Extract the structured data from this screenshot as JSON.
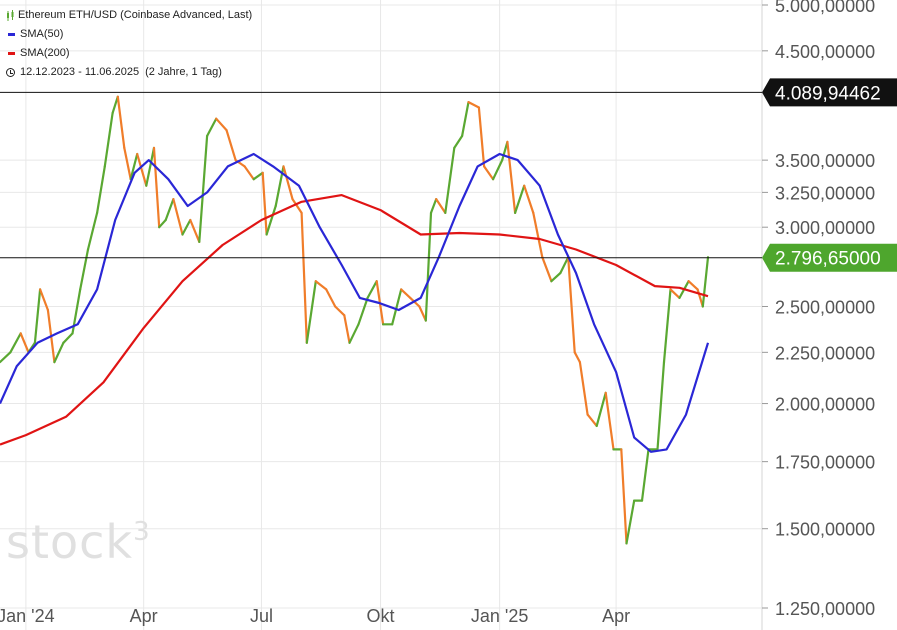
{
  "legend": {
    "instrument": "Ethereum ETH/USD (Coinbase Advanced, Last)",
    "sma50_label": "SMA(50)",
    "sma200_label": "SMA(200)",
    "period": "12.12.2023 - 11.06.2025",
    "period_detail": "(2 Jahre, 1 Tag)",
    "instrument_icon": "candle-icon",
    "period_icon": "clock-icon"
  },
  "watermark": {
    "text": "stock",
    "superscript": "3"
  },
  "colors": {
    "price_up": "#5aa832",
    "price_down": "#f07d2a",
    "sma50": "#2a27d6",
    "sma200": "#e01414",
    "grid": "#e8e8e8",
    "axis_text": "#555555",
    "label_green": "#4ea62d"
  },
  "chart_data": {
    "type": "line",
    "title": "Ethereum ETH/USD (Coinbase Advanced, Last)",
    "scale": "log",
    "xlim": [
      "2023-12-12",
      "2025-06-11"
    ],
    "ylim": [
      1250,
      5000
    ],
    "x_ticks": [
      {
        "date": "2024-01-01",
        "label": "Jan '24"
      },
      {
        "date": "2024-04-01",
        "label": "Apr"
      },
      {
        "date": "2024-07-01",
        "label": "Jul"
      },
      {
        "date": "2024-10-01",
        "label": "Okt"
      },
      {
        "date": "2025-01-01",
        "label": "Jan '25"
      },
      {
        "date": "2025-04-01",
        "label": "Apr"
      }
    ],
    "y_ticks": [
      {
        "value": 5000,
        "label": "5.000,00000"
      },
      {
        "value": 4500,
        "label": "4.500,00000"
      },
      {
        "value": 3500,
        "label": "3.500,00000"
      },
      {
        "value": 3250,
        "label": "3.250,00000"
      },
      {
        "value": 3000,
        "label": "3.000,00000"
      },
      {
        "value": 2500,
        "label": "2.500,00000"
      },
      {
        "value": 2250,
        "label": "2.250,00000"
      },
      {
        "value": 2000,
        "label": "2.000,00000"
      },
      {
        "value": 1750,
        "label": "1.750,00000"
      },
      {
        "value": 1500,
        "label": "1.500,00000"
      },
      {
        "value": 1250,
        "label": "1.250,00000"
      }
    ],
    "horizontal_lines": [
      {
        "value": 4089.94462,
        "label": "4.089,94462",
        "style": "black"
      },
      {
        "value": 2796.65,
        "label": "2.796,65000",
        "style": "green"
      }
    ],
    "series": [
      {
        "name": "Ethereum ETH/USD (Coinbase Advanced, Last)",
        "kind": "price",
        "points": [
          [
            "2023-12-12",
            2200
          ],
          [
            "2023-12-20",
            2250
          ],
          [
            "2023-12-28",
            2350
          ],
          [
            "2024-01-03",
            2250
          ],
          [
            "2024-01-08",
            2300
          ],
          [
            "2024-01-12",
            2600
          ],
          [
            "2024-01-18",
            2480
          ],
          [
            "2024-01-23",
            2200
          ],
          [
            "2024-01-30",
            2300
          ],
          [
            "2024-02-06",
            2350
          ],
          [
            "2024-02-12",
            2600
          ],
          [
            "2024-02-18",
            2850
          ],
          [
            "2024-02-25",
            3100
          ],
          [
            "2024-03-02",
            3450
          ],
          [
            "2024-03-08",
            3900
          ],
          [
            "2024-03-12",
            4050
          ],
          [
            "2024-03-17",
            3600
          ],
          [
            "2024-03-22",
            3350
          ],
          [
            "2024-03-27",
            3550
          ],
          [
            "2024-04-03",
            3300
          ],
          [
            "2024-04-09",
            3600
          ],
          [
            "2024-04-13",
            3000
          ],
          [
            "2024-04-18",
            3050
          ],
          [
            "2024-04-24",
            3200
          ],
          [
            "2024-05-01",
            2950
          ],
          [
            "2024-05-07",
            3050
          ],
          [
            "2024-05-14",
            2900
          ],
          [
            "2024-05-20",
            3700
          ],
          [
            "2024-05-27",
            3850
          ],
          [
            "2024-06-04",
            3750
          ],
          [
            "2024-06-11",
            3500
          ],
          [
            "2024-06-18",
            3450
          ],
          [
            "2024-06-25",
            3350
          ],
          [
            "2024-07-02",
            3400
          ],
          [
            "2024-07-05",
            2950
          ],
          [
            "2024-07-12",
            3150
          ],
          [
            "2024-07-18",
            3450
          ],
          [
            "2024-07-25",
            3200
          ],
          [
            "2024-08-01",
            3100
          ],
          [
            "2024-08-05",
            2300
          ],
          [
            "2024-08-12",
            2650
          ],
          [
            "2024-08-20",
            2600
          ],
          [
            "2024-08-27",
            2500
          ],
          [
            "2024-09-03",
            2450
          ],
          [
            "2024-09-07",
            2300
          ],
          [
            "2024-09-14",
            2400
          ],
          [
            "2024-09-21",
            2550
          ],
          [
            "2024-09-28",
            2650
          ],
          [
            "2024-10-03",
            2400
          ],
          [
            "2024-10-10",
            2400
          ],
          [
            "2024-10-17",
            2600
          ],
          [
            "2024-10-24",
            2550
          ],
          [
            "2024-10-31",
            2500
          ],
          [
            "2024-11-05",
            2420
          ],
          [
            "2024-11-09",
            3100
          ],
          [
            "2024-11-13",
            3200
          ],
          [
            "2024-11-20",
            3100
          ],
          [
            "2024-11-27",
            3600
          ],
          [
            "2024-12-03",
            3700
          ],
          [
            "2024-12-08",
            4000
          ],
          [
            "2024-12-16",
            3950
          ],
          [
            "2024-12-20",
            3450
          ],
          [
            "2024-12-27",
            3350
          ],
          [
            "2025-01-03",
            3500
          ],
          [
            "2025-01-07",
            3650
          ],
          [
            "2025-01-13",
            3100
          ],
          [
            "2025-01-20",
            3300
          ],
          [
            "2025-01-27",
            3100
          ],
          [
            "2025-02-03",
            2800
          ],
          [
            "2025-02-10",
            2650
          ],
          [
            "2025-02-17",
            2700
          ],
          [
            "2025-02-23",
            2800
          ],
          [
            "2025-02-28",
            2250
          ],
          [
            "2025-03-04",
            2200
          ],
          [
            "2025-03-10",
            1950
          ],
          [
            "2025-03-17",
            1900
          ],
          [
            "2025-03-24",
            2050
          ],
          [
            "2025-03-30",
            1800
          ],
          [
            "2025-04-05",
            1800
          ],
          [
            "2025-04-09",
            1450
          ],
          [
            "2025-04-15",
            1600
          ],
          [
            "2025-04-21",
            1600
          ],
          [
            "2025-04-26",
            1800
          ],
          [
            "2025-05-03",
            1800
          ],
          [
            "2025-05-08",
            2200
          ],
          [
            "2025-05-13",
            2600
          ],
          [
            "2025-05-20",
            2550
          ],
          [
            "2025-05-27",
            2650
          ],
          [
            "2025-06-03",
            2600
          ],
          [
            "2025-06-07",
            2500
          ],
          [
            "2025-06-11",
            2800
          ]
        ]
      },
      {
        "name": "SMA(50)",
        "kind": "sma50",
        "points": [
          [
            "2023-12-12",
            2000
          ],
          [
            "2023-12-25",
            2180
          ],
          [
            "2024-01-10",
            2300
          ],
          [
            "2024-01-25",
            2350
          ],
          [
            "2024-02-10",
            2400
          ],
          [
            "2024-02-25",
            2600
          ],
          [
            "2024-03-10",
            3050
          ],
          [
            "2024-03-25",
            3400
          ],
          [
            "2024-04-05",
            3500
          ],
          [
            "2024-04-20",
            3350
          ],
          [
            "2024-05-05",
            3150
          ],
          [
            "2024-05-20",
            3250
          ],
          [
            "2024-06-05",
            3450
          ],
          [
            "2024-06-25",
            3550
          ],
          [
            "2024-07-10",
            3450
          ],
          [
            "2024-07-30",
            3300
          ],
          [
            "2024-08-15",
            3000
          ],
          [
            "2024-09-01",
            2750
          ],
          [
            "2024-09-15",
            2550
          ],
          [
            "2024-09-30",
            2520
          ],
          [
            "2024-10-15",
            2480
          ],
          [
            "2024-11-01",
            2550
          ],
          [
            "2024-11-15",
            2800
          ],
          [
            "2024-12-01",
            3150
          ],
          [
            "2024-12-15",
            3450
          ],
          [
            "2025-01-01",
            3550
          ],
          [
            "2025-01-15",
            3500
          ],
          [
            "2025-02-01",
            3300
          ],
          [
            "2025-02-15",
            2950
          ],
          [
            "2025-03-01",
            2700
          ],
          [
            "2025-03-15",
            2400
          ],
          [
            "2025-04-01",
            2150
          ],
          [
            "2025-04-15",
            1850
          ],
          [
            "2025-04-28",
            1790
          ],
          [
            "2025-05-10",
            1800
          ],
          [
            "2025-05-25",
            1950
          ],
          [
            "2025-06-11",
            2300
          ]
        ]
      },
      {
        "name": "SMA(200)",
        "kind": "sma200",
        "points": [
          [
            "2023-12-12",
            1820
          ],
          [
            "2024-01-01",
            1860
          ],
          [
            "2024-02-01",
            1940
          ],
          [
            "2024-03-01",
            2100
          ],
          [
            "2024-04-01",
            2380
          ],
          [
            "2024-05-01",
            2650
          ],
          [
            "2024-06-01",
            2880
          ],
          [
            "2024-07-01",
            3050
          ],
          [
            "2024-08-01",
            3180
          ],
          [
            "2024-09-01",
            3230
          ],
          [
            "2024-10-01",
            3120
          ],
          [
            "2024-11-01",
            2950
          ],
          [
            "2024-12-01",
            2960
          ],
          [
            "2025-01-01",
            2950
          ],
          [
            "2025-02-01",
            2920
          ],
          [
            "2025-03-01",
            2850
          ],
          [
            "2025-04-01",
            2750
          ],
          [
            "2025-05-01",
            2620
          ],
          [
            "2025-05-20",
            2610
          ],
          [
            "2025-06-11",
            2560
          ]
        ]
      }
    ]
  }
}
